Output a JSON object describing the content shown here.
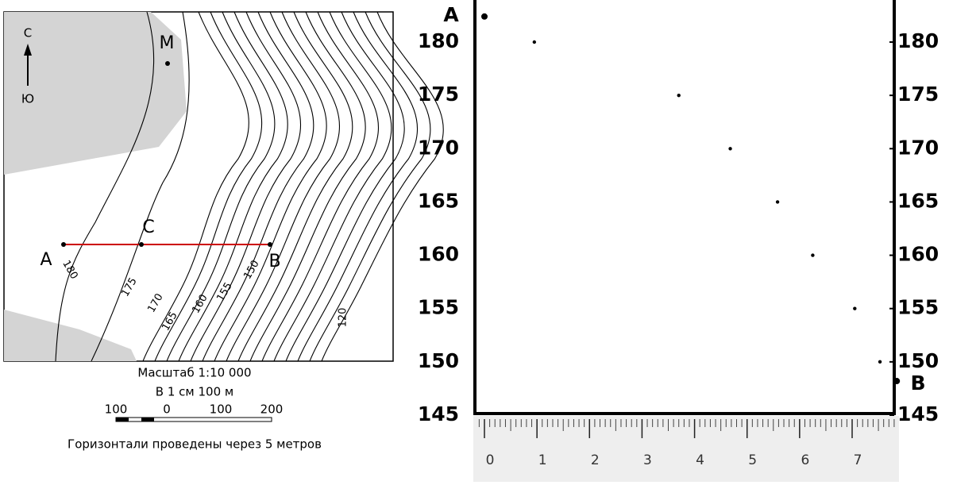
{
  "map": {
    "north": "С",
    "south": "Ю",
    "points": {
      "m": "М",
      "a": "А",
      "c": "С",
      "b": "B"
    },
    "contour_labels": [
      "180",
      "175",
      "170",
      "165",
      "160",
      "155",
      "150",
      "120"
    ],
    "scale": {
      "title": "Масштаб 1:10 000",
      "note": "В 1 см 100 м",
      "bar_labels": [
        100,
        0,
        100,
        200
      ]
    },
    "caption": "Горизонтали проведены через 5 метров"
  },
  "profile": {
    "start_label": "А",
    "end_label": "B",
    "yticks": [
      180,
      175,
      170,
      165,
      160,
      155,
      150,
      145
    ],
    "xticks": [
      0,
      1,
      2,
      3,
      4,
      5,
      6,
      7
    ],
    "points": [
      {
        "x": 0,
        "height": 182.4
      },
      {
        "x": 0.95,
        "height": 180
      },
      {
        "x": 3.7,
        "height": 175
      },
      {
        "x": 4.68,
        "height": 170
      },
      {
        "x": 5.58,
        "height": 165
      },
      {
        "x": 6.25,
        "height": 160
      },
      {
        "x": 7.05,
        "height": 155
      },
      {
        "x": 7.53,
        "height": 150
      },
      {
        "x": 7.85,
        "height": 148.2
      }
    ]
  }
}
